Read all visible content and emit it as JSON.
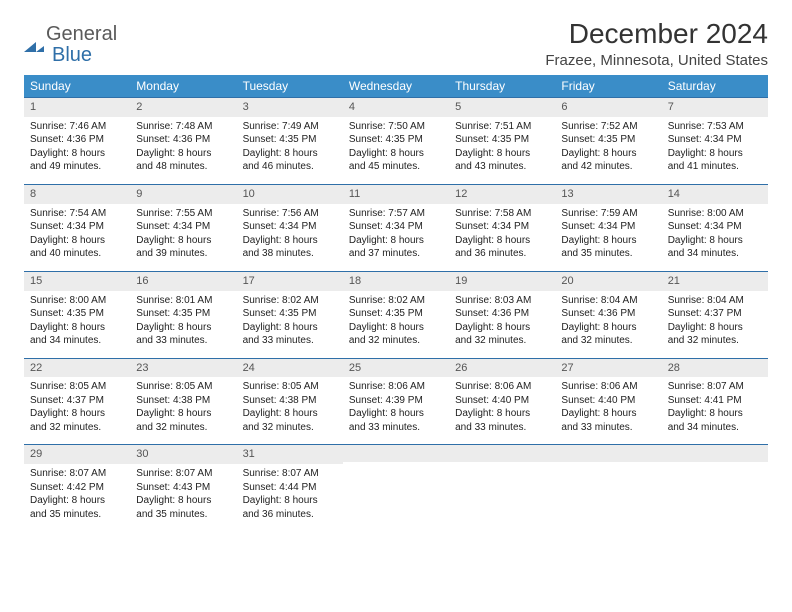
{
  "brand": {
    "general": "General",
    "blue": "Blue"
  },
  "title": "December 2024",
  "location": "Frazee, Minnesota, United States",
  "colors": {
    "header_bg": "#3a8dc8",
    "header_text": "#ffffff",
    "daynum_bg": "#ececec",
    "border": "#2f6fa8",
    "body_bg": "#ffffff"
  },
  "dow": [
    "Sunday",
    "Monday",
    "Tuesday",
    "Wednesday",
    "Thursday",
    "Friday",
    "Saturday"
  ],
  "days": [
    {
      "n": 1,
      "sr": "7:46 AM",
      "ss": "4:36 PM",
      "dl": "8 hours and 49 minutes."
    },
    {
      "n": 2,
      "sr": "7:48 AM",
      "ss": "4:36 PM",
      "dl": "8 hours and 48 minutes."
    },
    {
      "n": 3,
      "sr": "7:49 AM",
      "ss": "4:35 PM",
      "dl": "8 hours and 46 minutes."
    },
    {
      "n": 4,
      "sr": "7:50 AM",
      "ss": "4:35 PM",
      "dl": "8 hours and 45 minutes."
    },
    {
      "n": 5,
      "sr": "7:51 AM",
      "ss": "4:35 PM",
      "dl": "8 hours and 43 minutes."
    },
    {
      "n": 6,
      "sr": "7:52 AM",
      "ss": "4:35 PM",
      "dl": "8 hours and 42 minutes."
    },
    {
      "n": 7,
      "sr": "7:53 AM",
      "ss": "4:34 PM",
      "dl": "8 hours and 41 minutes."
    },
    {
      "n": 8,
      "sr": "7:54 AM",
      "ss": "4:34 PM",
      "dl": "8 hours and 40 minutes."
    },
    {
      "n": 9,
      "sr": "7:55 AM",
      "ss": "4:34 PM",
      "dl": "8 hours and 39 minutes."
    },
    {
      "n": 10,
      "sr": "7:56 AM",
      "ss": "4:34 PM",
      "dl": "8 hours and 38 minutes."
    },
    {
      "n": 11,
      "sr": "7:57 AM",
      "ss": "4:34 PM",
      "dl": "8 hours and 37 minutes."
    },
    {
      "n": 12,
      "sr": "7:58 AM",
      "ss": "4:34 PM",
      "dl": "8 hours and 36 minutes."
    },
    {
      "n": 13,
      "sr": "7:59 AM",
      "ss": "4:34 PM",
      "dl": "8 hours and 35 minutes."
    },
    {
      "n": 14,
      "sr": "8:00 AM",
      "ss": "4:34 PM",
      "dl": "8 hours and 34 minutes."
    },
    {
      "n": 15,
      "sr": "8:00 AM",
      "ss": "4:35 PM",
      "dl": "8 hours and 34 minutes."
    },
    {
      "n": 16,
      "sr": "8:01 AM",
      "ss": "4:35 PM",
      "dl": "8 hours and 33 minutes."
    },
    {
      "n": 17,
      "sr": "8:02 AM",
      "ss": "4:35 PM",
      "dl": "8 hours and 33 minutes."
    },
    {
      "n": 18,
      "sr": "8:02 AM",
      "ss": "4:35 PM",
      "dl": "8 hours and 32 minutes."
    },
    {
      "n": 19,
      "sr": "8:03 AM",
      "ss": "4:36 PM",
      "dl": "8 hours and 32 minutes."
    },
    {
      "n": 20,
      "sr": "8:04 AM",
      "ss": "4:36 PM",
      "dl": "8 hours and 32 minutes."
    },
    {
      "n": 21,
      "sr": "8:04 AM",
      "ss": "4:37 PM",
      "dl": "8 hours and 32 minutes."
    },
    {
      "n": 22,
      "sr": "8:05 AM",
      "ss": "4:37 PM",
      "dl": "8 hours and 32 minutes."
    },
    {
      "n": 23,
      "sr": "8:05 AM",
      "ss": "4:38 PM",
      "dl": "8 hours and 32 minutes."
    },
    {
      "n": 24,
      "sr": "8:05 AM",
      "ss": "4:38 PM",
      "dl": "8 hours and 32 minutes."
    },
    {
      "n": 25,
      "sr": "8:06 AM",
      "ss": "4:39 PM",
      "dl": "8 hours and 33 minutes."
    },
    {
      "n": 26,
      "sr": "8:06 AM",
      "ss": "4:40 PM",
      "dl": "8 hours and 33 minutes."
    },
    {
      "n": 27,
      "sr": "8:06 AM",
      "ss": "4:40 PM",
      "dl": "8 hours and 33 minutes."
    },
    {
      "n": 28,
      "sr": "8:07 AM",
      "ss": "4:41 PM",
      "dl": "8 hours and 34 minutes."
    },
    {
      "n": 29,
      "sr": "8:07 AM",
      "ss": "4:42 PM",
      "dl": "8 hours and 35 minutes."
    },
    {
      "n": 30,
      "sr": "8:07 AM",
      "ss": "4:43 PM",
      "dl": "8 hours and 35 minutes."
    },
    {
      "n": 31,
      "sr": "8:07 AM",
      "ss": "4:44 PM",
      "dl": "8 hours and 36 minutes."
    }
  ],
  "labels": {
    "sunrise": "Sunrise:",
    "sunset": "Sunset:",
    "daylight": "Daylight:"
  },
  "layout": {
    "first_weekday_index": 0,
    "total_cells": 35
  }
}
